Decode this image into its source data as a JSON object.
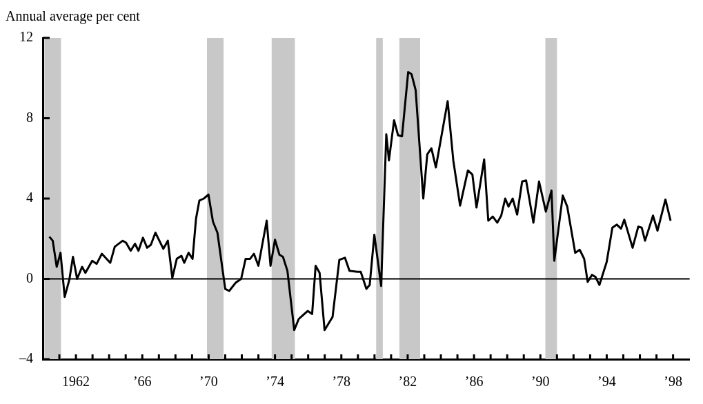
{
  "chart_data": {
    "type": "line",
    "ylabel": "Annual average per cent",
    "xlim": [
      1960,
      1999
    ],
    "ylim": [
      -4,
      12
    ],
    "yticks": [
      {
        "value": -4,
        "label": "–4"
      },
      0,
      4,
      8,
      12
    ],
    "xticks": [
      {
        "value": 1961,
        "label": null
      },
      {
        "value": 1962,
        "label": "1962"
      },
      {
        "value": 1963,
        "label": null
      },
      {
        "value": 1964,
        "label": null
      },
      {
        "value": 1965,
        "label": null
      },
      {
        "value": 1966,
        "label": "’66"
      },
      {
        "value": 1967,
        "label": null
      },
      {
        "value": 1968,
        "label": null
      },
      {
        "value": 1969,
        "label": null
      },
      {
        "value": 1970,
        "label": "’70"
      },
      {
        "value": 1971,
        "label": null
      },
      {
        "value": 1972,
        "label": null
      },
      {
        "value": 1973,
        "label": null
      },
      {
        "value": 1974,
        "label": "’74"
      },
      {
        "value": 1975,
        "label": null
      },
      {
        "value": 1976,
        "label": null
      },
      {
        "value": 1977,
        "label": null
      },
      {
        "value": 1978,
        "label": "’78"
      },
      {
        "value": 1979,
        "label": null
      },
      {
        "value": 1980,
        "label": null
      },
      {
        "value": 1981,
        "label": null
      },
      {
        "value": 1982,
        "label": "’82"
      },
      {
        "value": 1983,
        "label": null
      },
      {
        "value": 1984,
        "label": null
      },
      {
        "value": 1985,
        "label": null
      },
      {
        "value": 1986,
        "label": "’86"
      },
      {
        "value": 1987,
        "label": null
      },
      {
        "value": 1988,
        "label": null
      },
      {
        "value": 1989,
        "label": null
      },
      {
        "value": 1990,
        "label": "’90"
      },
      {
        "value": 1991,
        "label": null
      },
      {
        "value": 1992,
        "label": null
      },
      {
        "value": 1993,
        "label": null
      },
      {
        "value": 1994,
        "label": "’94"
      },
      {
        "value": 1995,
        "label": null
      },
      {
        "value": 1996,
        "label": null
      },
      {
        "value": 1997,
        "label": null
      },
      {
        "value": 1998,
        "label": "’98"
      }
    ],
    "grid": false,
    "legend": false,
    "marker": "none",
    "line_style": "solid",
    "bands": [
      {
        "axis": "x",
        "from": 1960.1,
        "to": 1961.1,
        "color": "#c8c8c8"
      },
      {
        "axis": "x",
        "from": 1969.9,
        "to": 1970.9,
        "color": "#c8c8c8"
      },
      {
        "axis": "x",
        "from": 1973.8,
        "to": 1975.2,
        "color": "#c8c8c8"
      },
      {
        "axis": "x",
        "from": 1980.1,
        "to": 1980.5,
        "color": "#c8c8c8"
      },
      {
        "axis": "x",
        "from": 1981.5,
        "to": 1982.75,
        "color": "#c8c8c8"
      },
      {
        "axis": "x",
        "from": 1990.3,
        "to": 1991.0,
        "color": "#c8c8c8"
      }
    ],
    "ref_lines": [
      {
        "axis": "y",
        "value": 0,
        "color": "#000000"
      }
    ],
    "series": [
      {
        "color": "#000000",
        "x": [
          1960.4,
          1960.6,
          1960.84,
          1961.07,
          1961.32,
          1961.6,
          1961.82,
          1962.07,
          1962.37,
          1962.57,
          1962.98,
          1963.25,
          1963.56,
          1964.07,
          1964.34,
          1964.82,
          1965.02,
          1965.3,
          1965.56,
          1965.77,
          1966.04,
          1966.29,
          1966.52,
          1966.79,
          1967.27,
          1967.54,
          1967.81,
          1968.08,
          1968.36,
          1968.53,
          1968.79,
          1969.03,
          1969.24,
          1969.44,
          1969.71,
          1969.99,
          1970.26,
          1970.53,
          1971.0,
          1971.24,
          1971.62,
          1971.96,
          1972.23,
          1972.5,
          1972.73,
          1973.0,
          1973.5,
          1973.73,
          1974.0,
          1974.27,
          1974.48,
          1974.75,
          1975.16,
          1975.43,
          1975.7,
          1975.97,
          1976.24,
          1976.45,
          1976.69,
          1976.99,
          1977.47,
          1977.88,
          1978.22,
          1978.49,
          1978.97,
          1979.17,
          1979.51,
          1979.71,
          1979.99,
          1980.4,
          1980.71,
          1980.87,
          1981.18,
          1981.42,
          1981.66,
          1982.03,
          1982.23,
          1982.48,
          1982.94,
          1983.18,
          1983.43,
          1983.7,
          1984.41,
          1984.75,
          1985.16,
          1985.63,
          1985.9,
          1986.15,
          1986.61,
          1986.86,
          1987.13,
          1987.4,
          1987.64,
          1987.88,
          1988.08,
          1988.33,
          1988.6,
          1988.9,
          1989.14,
          1989.58,
          1989.92,
          1990.33,
          1990.67,
          1990.84,
          1991.35,
          1991.62,
          1992.1,
          1992.37,
          1992.64,
          1992.85,
          1993.11,
          1993.32,
          1993.56,
          1994.0,
          1994.34,
          1994.61,
          1994.86,
          1995.06,
          1995.56,
          1995.9,
          1996.11,
          1996.31,
          1996.79,
          1997.06,
          1997.54,
          1997.85
        ],
        "values": [
          2.1,
          1.9,
          0.6,
          1.3,
          -0.9,
          -0.05,
          1.1,
          0.0,
          0.6,
          0.3,
          0.9,
          0.75,
          1.25,
          0.8,
          1.6,
          1.9,
          1.8,
          1.4,
          1.75,
          1.4,
          2.05,
          1.55,
          1.7,
          2.3,
          1.5,
          1.9,
          0.05,
          1.0,
          1.15,
          0.8,
          1.3,
          1.0,
          3.0,
          3.9,
          4.0,
          4.2,
          2.85,
          2.3,
          -0.5,
          -0.6,
          -0.2,
          0.0,
          1.0,
          1.0,
          1.25,
          0.65,
          2.9,
          0.65,
          1.95,
          1.2,
          1.1,
          0.4,
          -2.55,
          -2.0,
          -1.8,
          -1.6,
          -1.75,
          0.65,
          0.3,
          -2.55,
          -1.9,
          0.95,
          1.05,
          0.4,
          0.35,
          0.35,
          -0.5,
          -0.3,
          2.2,
          -0.35,
          7.2,
          5.9,
          7.9,
          7.15,
          7.1,
          10.3,
          10.2,
          9.4,
          4.0,
          6.2,
          6.5,
          5.55,
          8.85,
          5.9,
          3.65,
          5.4,
          5.2,
          3.55,
          5.95,
          2.9,
          3.1,
          2.8,
          3.15,
          4.0,
          3.6,
          4.0,
          3.2,
          4.85,
          4.9,
          2.8,
          4.85,
          3.35,
          4.4,
          0.9,
          4.15,
          3.6,
          1.3,
          1.45,
          1.0,
          -0.15,
          0.2,
          0.1,
          -0.3,
          0.85,
          2.55,
          2.7,
          2.5,
          2.95,
          1.55,
          2.6,
          2.55,
          1.9,
          3.15,
          2.4,
          3.95,
          2.9
        ]
      }
    ]
  }
}
